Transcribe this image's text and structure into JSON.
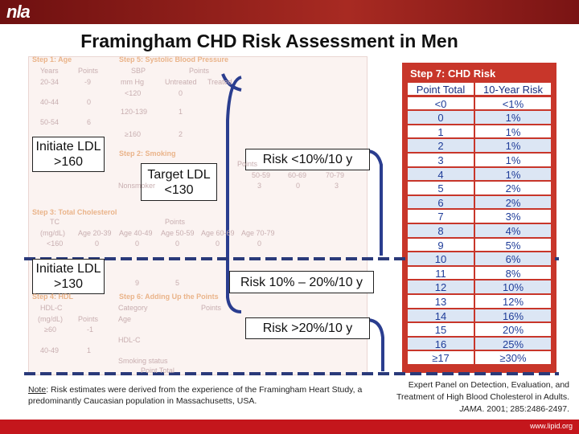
{
  "header": {
    "logo": "nla",
    "title": "Framingham CHD Risk  Assessment  in Men"
  },
  "faded_worksheet": [
    "Step 1: Age",
    "Years",
    "Points",
    "20-34",
    "-9",
    "40-44",
    "0",
    "50-54",
    "6",
    "Step 5: Systolic Blood Pressure",
    "SBP",
    "Points",
    "mm Hg",
    "Untreated",
    "Treated",
    "<120",
    "0",
    "120-139",
    "1",
    "≥160",
    "2",
    "Step 2: Smoking",
    "Points",
    "50-59",
    "60-69",
    "70-79",
    "Nonsmoker",
    "3",
    "0",
    "3",
    "Step 3: Total Cholesterol",
    "TC",
    "Points",
    "(mg/dL)",
    "Age 20-39",
    "Age 40-49",
    "Age 50-59",
    "Age 60-69",
    "Age 70-79",
    "<160",
    "0",
    "0",
    "0",
    "0",
    "0",
    "9",
    "5",
    "Step 4: HDL",
    "Step 6: Adding Up the Points",
    "HDL-C",
    "Category",
    "Points",
    "(mg/dL)",
    "Points",
    "Age",
    "≥60",
    "-1",
    "HDL-C",
    "40-49",
    "1",
    "Smoking status",
    "Point Total"
  ],
  "risk_table": {
    "title": "Step 7: CHD Risk",
    "columns": [
      "Point Total",
      "10-Year Risk"
    ],
    "rows": [
      [
        "<0",
        "<1%"
      ],
      [
        "0",
        "1%"
      ],
      [
        "1",
        "1%"
      ],
      [
        "2",
        "1%"
      ],
      [
        "3",
        "1%"
      ],
      [
        "4",
        "1%"
      ],
      [
        "5",
        "2%"
      ],
      [
        "6",
        "2%"
      ],
      [
        "7",
        "3%"
      ],
      [
        "8",
        "4%"
      ],
      [
        "9",
        "5%"
      ],
      [
        "10",
        "6%"
      ],
      [
        "11",
        "8%"
      ],
      [
        "12",
        "10%"
      ],
      [
        "13",
        "12%"
      ],
      [
        "14",
        "16%"
      ],
      [
        "15",
        "20%"
      ],
      [
        "16",
        "25%"
      ],
      [
        "≥17",
        "≥30%"
      ]
    ]
  },
  "callouts": {
    "initiate_160": "Initiate LDL >160",
    "target_130": "Target LDL <130",
    "risk_low": "Risk <10%/10 y",
    "initiate_130": "Initiate LDL >130",
    "risk_mid": "Risk 10% – 20%/10 y",
    "risk_high": "Risk >20%/10 y"
  },
  "note": {
    "label": "Note",
    "text": ": Risk estimates were derived from the experience of the Framingham Heart Study, a predominantly Caucasian population in Massachusetts, USA."
  },
  "reference": {
    "before": "Expert Panel on Detection, Evaluation, and Treatment of High Blood Cholesterol in Adults. ",
    "journal": "JAMA",
    "after": ". 2001; 285:2486-2497."
  },
  "footer": {
    "url": "www.lipid.org"
  }
}
